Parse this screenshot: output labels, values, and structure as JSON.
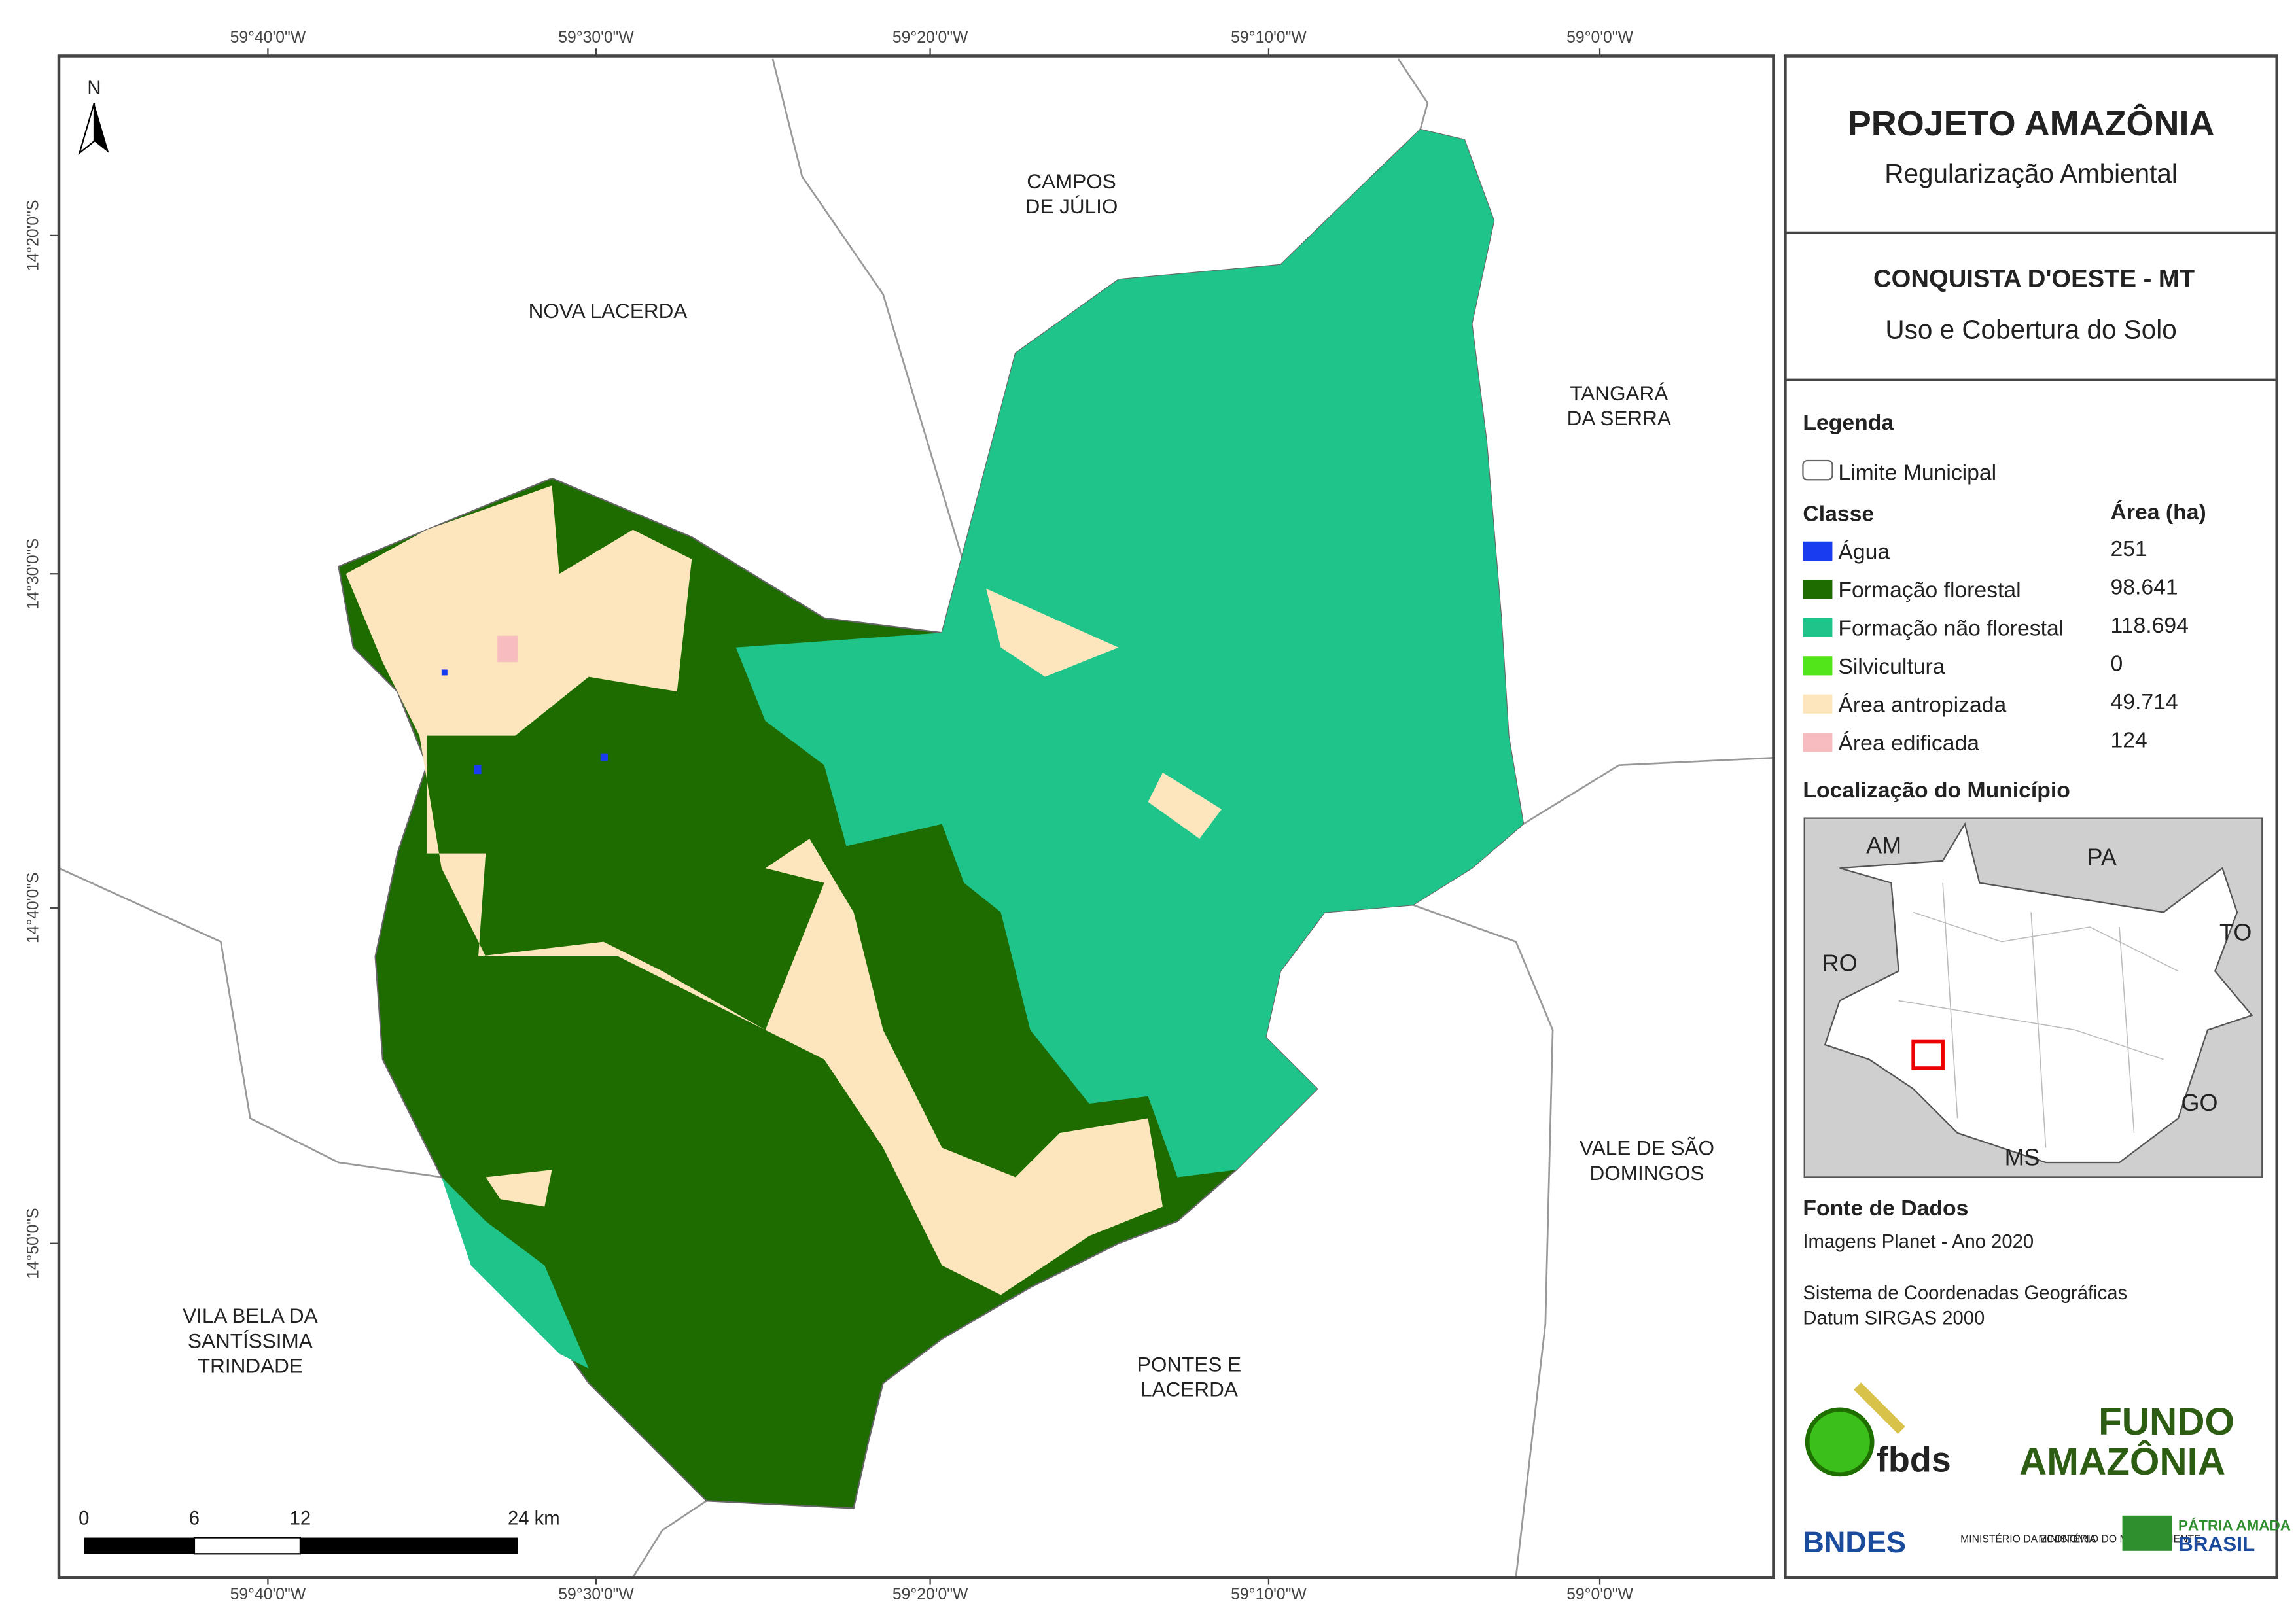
{
  "header": {
    "title": "PROJETO AMAZÔNIA",
    "subtitle": "Regularização Ambiental",
    "municipality": "CONQUISTA D'OESTE - MT",
    "theme": "Uso e Cobertura do Solo"
  },
  "coordinates": {
    "longitudes": [
      "59°40'0\"W",
      "59°30'0\"W",
      "59°20'0\"W",
      "59°10'0\"W",
      "59°0'0\"W"
    ],
    "latitudes": [
      "14°20'0\"S",
      "14°30'0\"S",
      "14°40'0\"S",
      "14°50'0\"S"
    ]
  },
  "places": [
    "CAMPOS DE JÚLIO",
    "NOVA LACERDA",
    "TANGARÁ DA SERRA",
    "VALE DE SÃO DOMINGOS",
    "PONTES E LACERDA",
    "VILA BELA DA SANTÍSSIMA TRINDADE"
  ],
  "north": "N",
  "scale_bar": [
    "0",
    "6",
    "12",
    "24 km"
  ],
  "legend": {
    "title": "Legenda",
    "boundary": "Limite Municipal",
    "class_header": "Classe",
    "area_header": "Área (ha)",
    "items": [
      {
        "name": "Água",
        "area": "251",
        "color": "#1a3cf0"
      },
      {
        "name": "Formação florestal",
        "area": "98.641",
        "color": "#1e6b00"
      },
      {
        "name": "Formação não florestal",
        "area": "118.694",
        "color": "#1ec48a"
      },
      {
        "name": "Silvicultura",
        "area": "0",
        "color": "#52e61a"
      },
      {
        "name": "Área antropizada",
        "area": "49.714",
        "color": "#fde6bd"
      },
      {
        "name": "Área edificada",
        "area": "124",
        "color": "#f7bcbf"
      }
    ]
  },
  "location": {
    "title": "Localização do Município",
    "states": [
      "AM",
      "PA",
      "TO",
      "RO",
      "GO",
      "MS"
    ]
  },
  "sources": {
    "title": "Fonte de Dados",
    "lines": [
      "Imagens Planet - Ano 2020",
      "Sistema de Coordenadas Geográficas",
      "Datum SIRGAS 2000"
    ]
  },
  "logos": [
    "fbds",
    "FUNDO",
    "AMAZÔNIA",
    "BNDES",
    "MINISTÉRIO DA ECONOMIA",
    "MINISTÉRIO DO MEIO AMBIENTE",
    "PÁTRIA AMADA",
    "BRASIL"
  ]
}
